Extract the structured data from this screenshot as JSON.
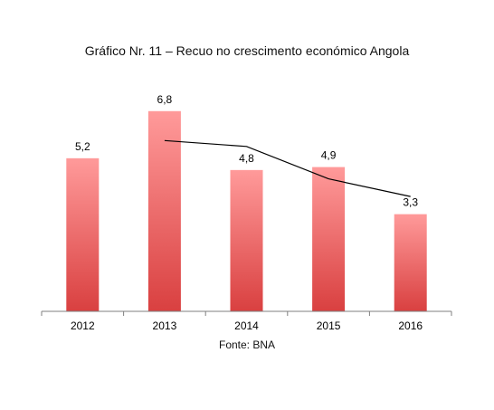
{
  "chart_data": {
    "type": "bar",
    "title": "Gráfico Nr. 11 – Recuo no crescimento económico Angola",
    "source": "Fonte: BNA",
    "categories": [
      "2012",
      "2013",
      "2014",
      "2015",
      "2016"
    ],
    "values": [
      5.2,
      6.8,
      4.8,
      4.9,
      3.3
    ],
    "value_labels": [
      "5,2",
      "6,8",
      "4,8",
      "4,9",
      "3,3"
    ],
    "trend_line": {
      "x": [
        "2013",
        "2014",
        "2015",
        "2016"
      ],
      "values": [
        5.8,
        5.6,
        4.5,
        3.9
      ]
    },
    "ylim": [
      0,
      7.5
    ],
    "grid": false,
    "legend": "none",
    "colors": {
      "bar_top": "#ff9a9a",
      "bar_bottom": "#d94040",
      "line": "#000000",
      "axis": "#7f7f7f"
    }
  }
}
